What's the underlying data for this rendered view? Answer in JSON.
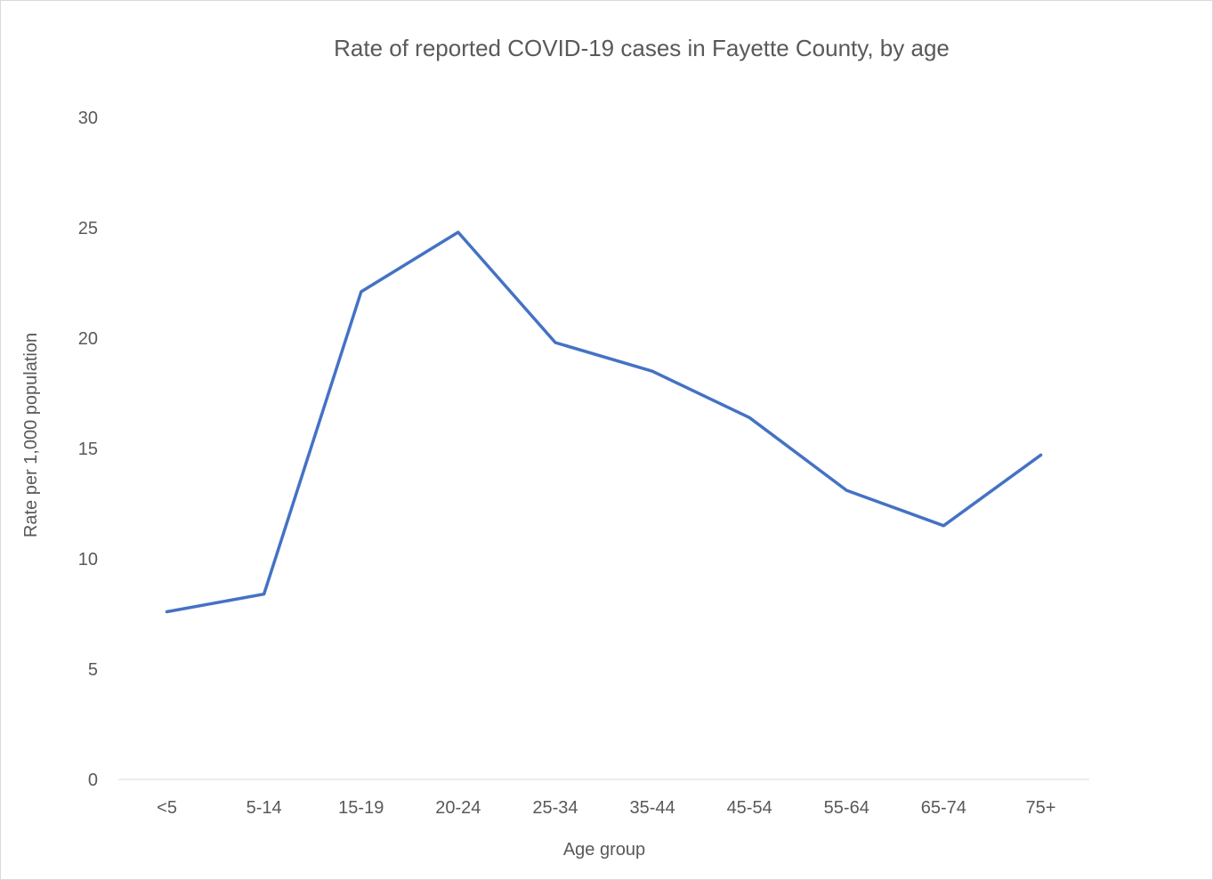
{
  "chart_data": {
    "type": "line",
    "title": "Rate of reported COVID-19 cases in Fayette County, by age",
    "xlabel": "Age group",
    "ylabel": "Rate per 1,000 population",
    "categories": [
      "<5",
      "5-14",
      "15-19",
      "20-24",
      "25-34",
      "35-44",
      "45-54",
      "55-64",
      "65-74",
      "75+"
    ],
    "series": [
      {
        "values": [
          7.6,
          8.4,
          22.1,
          24.8,
          19.8,
          18.5,
          16.4,
          13.1,
          11.5,
          14.7
        ],
        "color": "#4472c4"
      }
    ],
    "ylim": [
      0,
      30
    ],
    "yticks": [
      0,
      5,
      10,
      15,
      20,
      25,
      30
    ],
    "grid": false,
    "legend": "none",
    "colors": {
      "axis_line": "#d9d9d9",
      "text": "#595959"
    }
  }
}
